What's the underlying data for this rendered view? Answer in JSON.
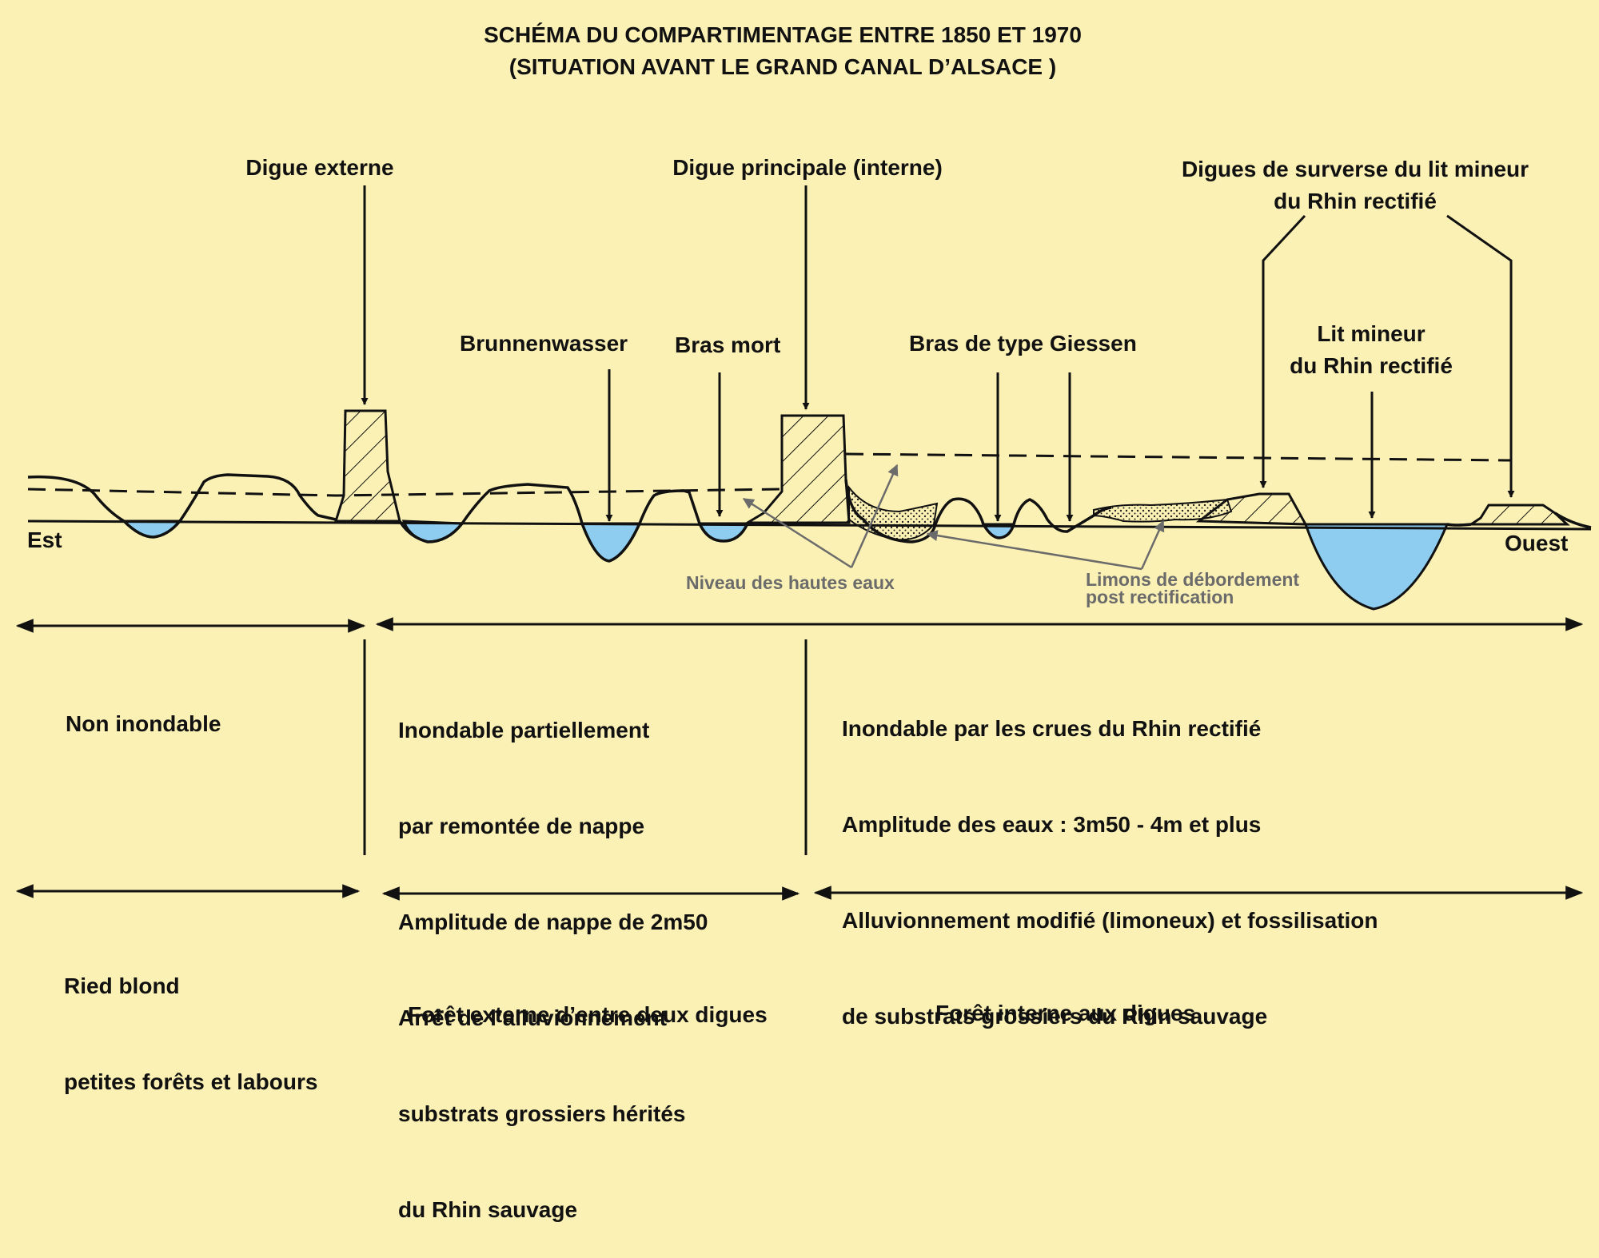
{
  "title": {
    "line1": "SCHÉMA DU COMPARTIMENTAGE ENTRE 1850 ET 1970",
    "line2": "(SITUATION AVANT LE GRAND CANAL D’ALSACE )"
  },
  "labels": {
    "digue_externe": "Digue externe",
    "digue_principale": "Digue principale (interne)",
    "digues_surverse": [
      "Digues de surverse du lit mineur",
      "du Rhin rectifié"
    ],
    "brunnenwasser": "Brunnenwasser",
    "bras_mort": "Bras mort",
    "bras_giessen": "Bras de type Giessen",
    "lit_mineur": [
      "Lit mineur",
      "du Rhin rectifié"
    ],
    "est": "Est",
    "ouest": "Ouest",
    "niveau_hautes_eaux": "Niveau des hautes eaux",
    "limons": [
      "Limons de débordement",
      "post rectification"
    ]
  },
  "zones_flood": {
    "zone1": [
      "Non inondable"
    ],
    "zone2": [
      "Inondable partiellement",
      "par remontée de nappe",
      "Amplitude de nappe de 2m50",
      "Arrêt de l’alluvionnement",
      "substrats grossiers hérités",
      "du Rhin sauvage"
    ],
    "zone3": [
      "Inondable par les crues du Rhin rectifié",
      "Amplitude des eaux : 3m50 - 4m et plus",
      "Alluvionnement modifié (limoneux) et fossilisation",
      "de substrats grossiers du Rhin sauvage"
    ]
  },
  "zones_land": {
    "zone1": [
      "Ried blond",
      "petites forêts et labours"
    ],
    "zone2": [
      "Forêt externe d’entre deux digues"
    ],
    "zone3": [
      "Forêt interne aux digues"
    ]
  },
  "colors": {
    "background": "#fbf1b4",
    "water": "#8ecdf0",
    "ink": "#111111",
    "annotation": "#6b6b6b"
  }
}
